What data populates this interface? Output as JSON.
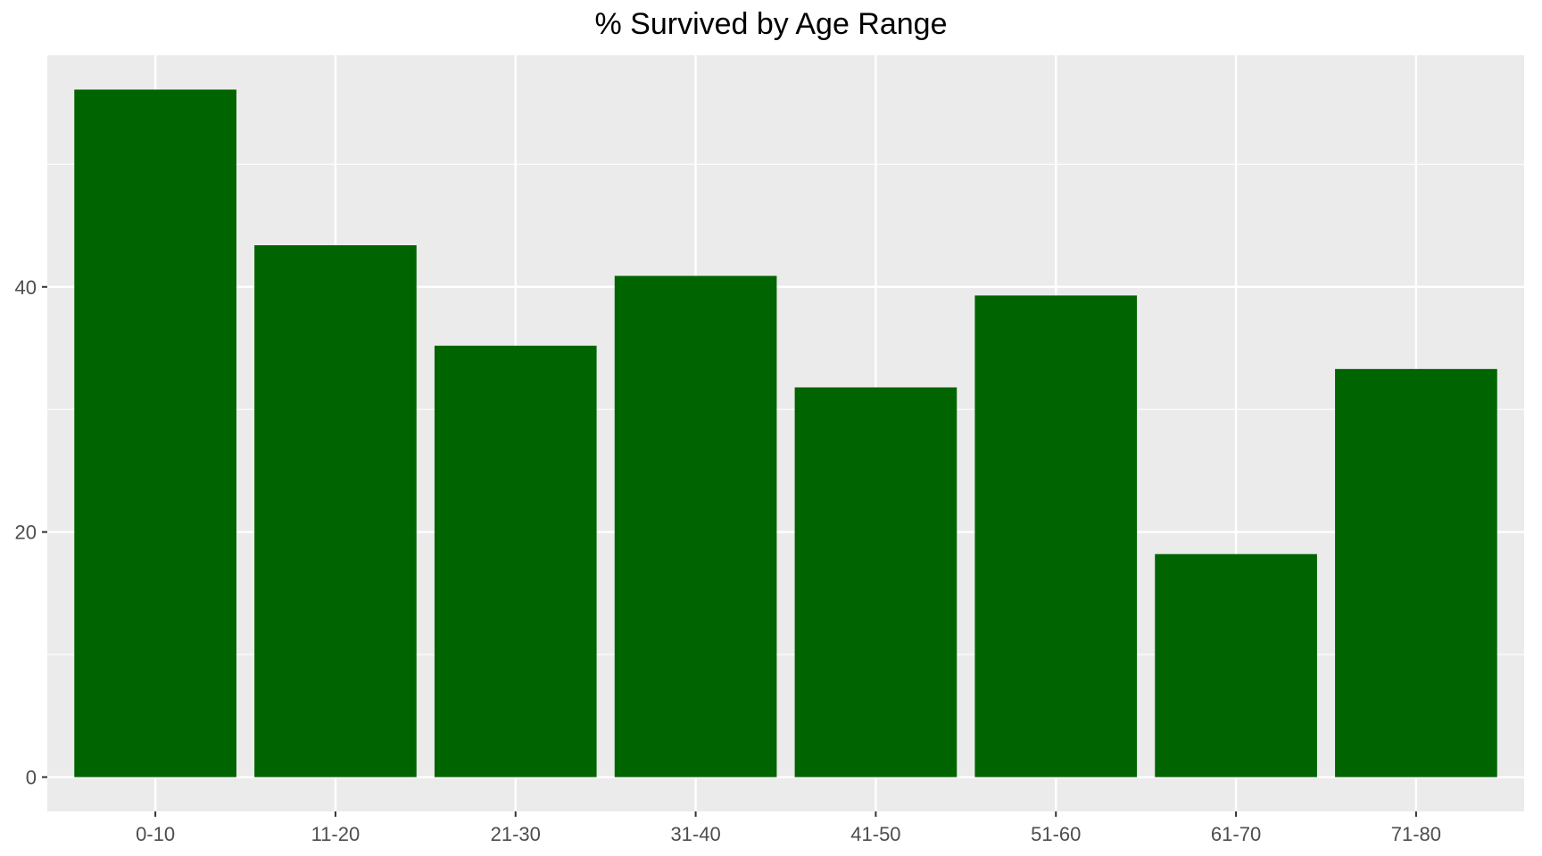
{
  "chart_data": {
    "type": "bar",
    "title": "% Survived by Age Range",
    "xlabel": "",
    "ylabel": "",
    "categories": [
      "0-10",
      "11-20",
      "21-30",
      "31-40",
      "41-50",
      "51-60",
      "61-70",
      "71-80"
    ],
    "values": [
      56.1,
      43.4,
      35.2,
      40.9,
      31.8,
      39.3,
      18.2,
      33.3
    ],
    "ylim": [
      -2.8,
      58.9
    ],
    "yticks": [
      0,
      20,
      40
    ],
    "ytick_labels": [
      "0",
      "20",
      "40"
    ],
    "y_minor_gridlines": [
      10,
      30,
      50
    ],
    "grid": true,
    "legend": "none",
    "colors": {
      "bar": "#006400",
      "panel_background": "#EBEBEB",
      "gridline": "#FFFFFF",
      "tick_label": "#4D4D4D",
      "tick_mark": "#333333"
    }
  }
}
